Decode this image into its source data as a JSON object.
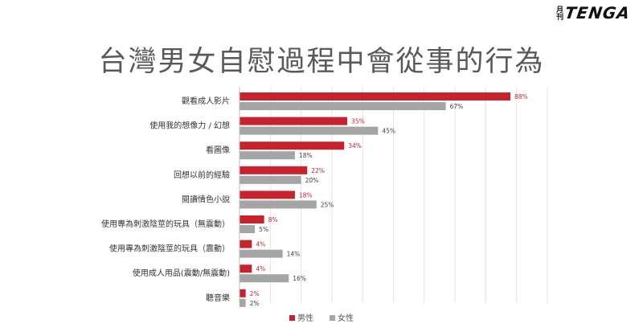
{
  "brand": {
    "small": "月刊",
    "main": "TENGA"
  },
  "chart_data": {
    "type": "bar",
    "orientation": "horizontal",
    "title": "台灣男女自慰過程中會從事的行為",
    "categories": [
      "觀看成人影片",
      "使用我的想像力 / 幻想",
      "看圖像",
      "回想以前的經驗",
      "閱讀情色小說",
      "使用專為刺激陰莖的玩具（無震動）",
      "使用專為刺激陰莖的玩具（震動）",
      "使用成人用品(震動/無震動)",
      "聽音樂"
    ],
    "series": [
      {
        "name": "男性",
        "color": "#C8232C",
        "values": [
          88,
          35,
          34,
          22,
          18,
          8,
          4,
          4,
          2
        ],
        "labels": [
          "88%",
          "35%",
          "34%",
          "22%",
          "18%",
          "8%",
          "4%",
          "4%",
          "2%"
        ]
      },
      {
        "name": "女性",
        "color": "#A5A5A5",
        "values": [
          67,
          45,
          18,
          20,
          25,
          5,
          14,
          16,
          2
        ],
        "labels": [
          "67%",
          "45%",
          "18%",
          "20%",
          "25%",
          "5%",
          "14%",
          "16%",
          "2%"
        ]
      }
    ],
    "xlim": [
      0,
      100
    ],
    "grid": true,
    "legend": "bottom-center",
    "label_colors": {
      "男性": "#C8232C",
      "女性": "#404040"
    }
  }
}
